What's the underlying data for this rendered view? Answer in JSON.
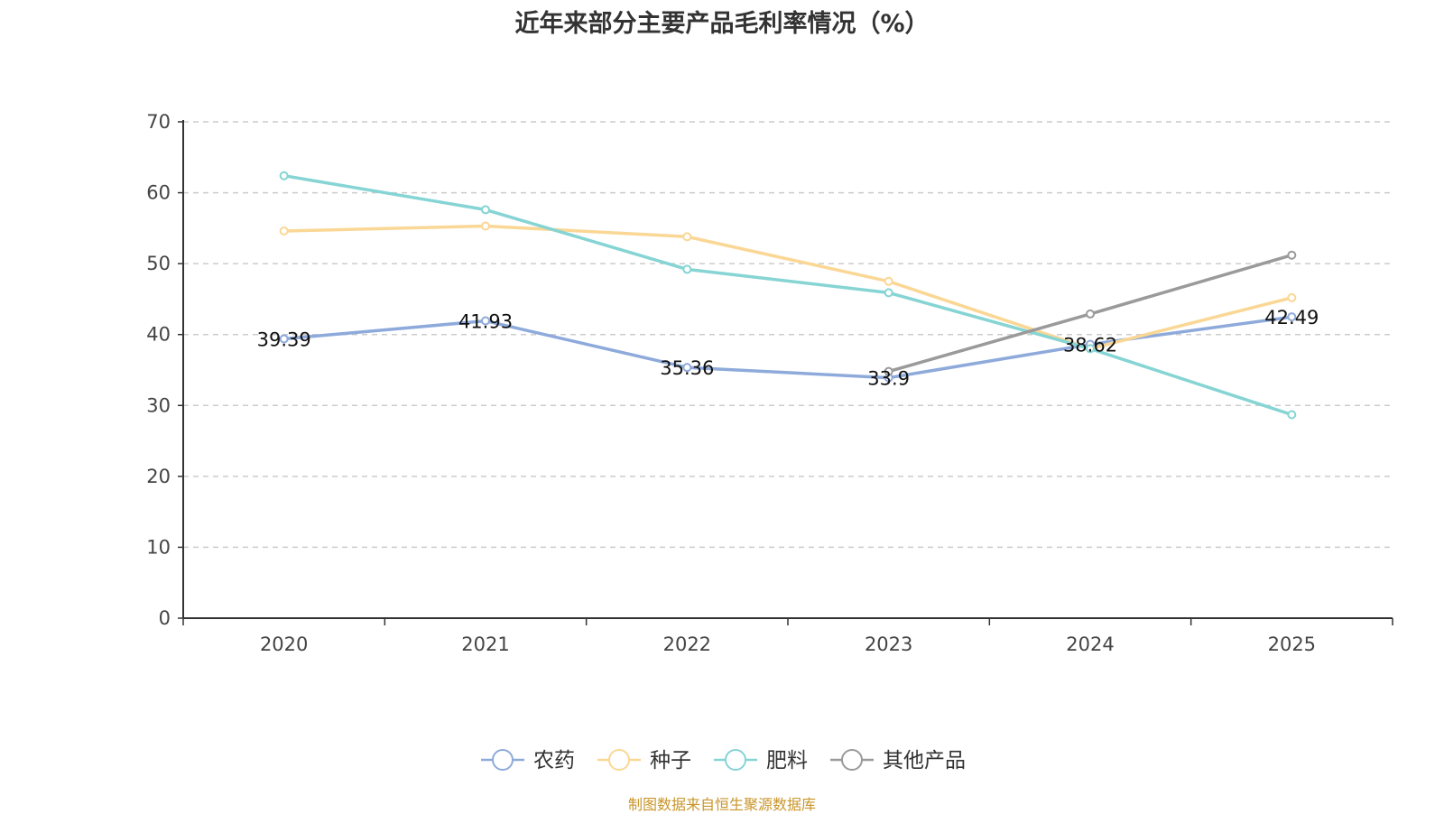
{
  "chart_data": {
    "type": "line",
    "title": "近年来部分主要产品毛利率情况（%）",
    "categories": [
      "2020",
      "2021",
      "2022",
      "2023",
      "2024",
      "2025"
    ],
    "ylim": [
      0,
      70
    ],
    "yticks": [
      0,
      10,
      20,
      30,
      40,
      50,
      60,
      70
    ],
    "grid": true,
    "legend_position": "bottom",
    "series": [
      {
        "name": "农药",
        "color": "#8eaadb",
        "values": [
          39.39,
          41.93,
          35.36,
          33.9,
          38.62,
          42.49
        ],
        "labels": [
          "39.39",
          "41.93",
          "35.36",
          "33.9",
          "38.62",
          "42.49"
        ]
      },
      {
        "name": "种子",
        "color": "#fad795",
        "values": [
          54.6,
          55.3,
          53.8,
          47.5,
          38.0,
          45.2
        ]
      },
      {
        "name": "肥料",
        "color": "#86d4d4",
        "values": [
          62.4,
          57.6,
          49.2,
          45.9,
          38.0,
          28.7
        ]
      },
      {
        "name": "其他产品",
        "color": "#9a9a9a",
        "values": [
          null,
          null,
          null,
          34.8,
          42.9,
          51.2
        ]
      }
    ]
  },
  "source": "制图数据来自恒生聚源数据库"
}
